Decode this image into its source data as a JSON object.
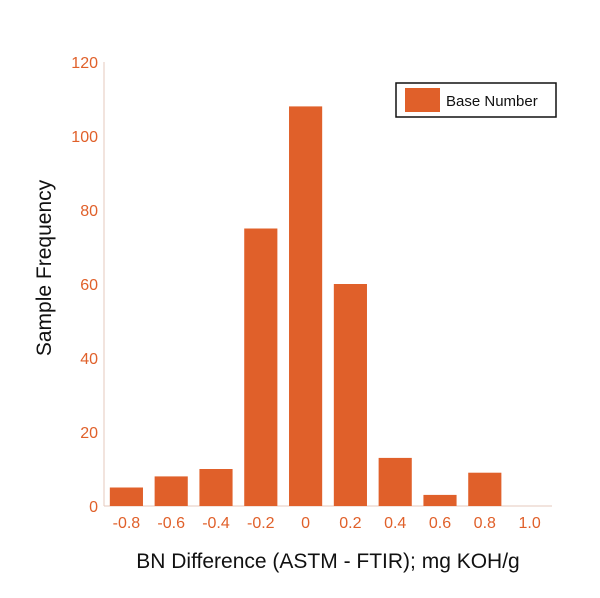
{
  "chart_data": {
    "type": "bar",
    "categories": [
      "-0.8",
      "-0.6",
      "-0.4",
      "-0.2",
      "0",
      "0.2",
      "0.4",
      "0.6",
      "0.8",
      "1.0"
    ],
    "series": [
      {
        "name": "Base Number",
        "values": [
          5,
          8,
          10,
          75,
          108,
          60,
          13,
          3,
          9,
          0
        ]
      }
    ],
    "title": "",
    "xlabel": "BN Difference (ASTM - FTIR); mg KOH/g",
    "ylabel": "Sample Frequency",
    "ylim": [
      0,
      120
    ],
    "yticks": [
      "0",
      "20",
      "40",
      "60",
      "80",
      "100",
      "120"
    ],
    "grid": false,
    "legend_position": "top-right",
    "colors": {
      "bar": "#e0602a",
      "tick_label": "#e0602a",
      "axis_line": "#e6c9bd"
    }
  }
}
